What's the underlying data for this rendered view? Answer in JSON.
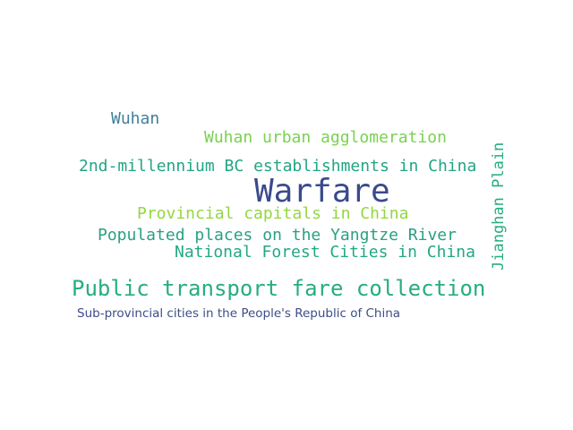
{
  "words": {
    "wuhan": {
      "text": "Wuhan",
      "color": "#3f7f9a"
    },
    "wuhan_urban": {
      "text": "Wuhan urban agglomeration",
      "color": "#7ad151"
    },
    "millennium": {
      "text": "2nd-millennium BC establishments in China",
      "color": "#21a585"
    },
    "warfare": {
      "text": "Warfare",
      "color": "#3b4a8c"
    },
    "jianghan": {
      "text": "Jianghan Plain",
      "color": "#26ad81"
    },
    "provincial": {
      "text": "Provincial capitals in China",
      "color": "#93d741"
    },
    "populated": {
      "text": "Populated places on the Yangtze River",
      "color": "#2aa083"
    },
    "forest": {
      "text": "National Forest Cities in China",
      "color": "#22a884"
    },
    "fare": {
      "text": "Public transport fare collection",
      "color": "#26ad81"
    },
    "subprovincial": {
      "text": "Sub-provincial cities in the People's Republic of China",
      "color": "#3d4d8a"
    }
  }
}
